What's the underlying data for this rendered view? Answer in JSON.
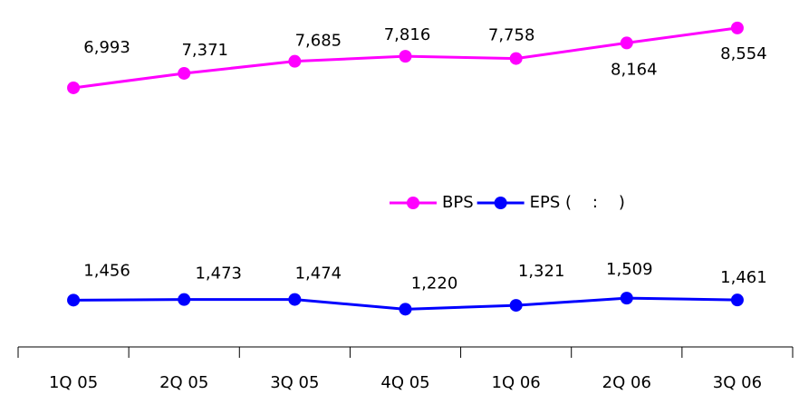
{
  "chart_data": {
    "type": "line",
    "categories": [
      "1Q 05",
      "2Q 05",
      "3Q 05",
      "4Q 05",
      "1Q 06",
      "2Q 06",
      "3Q 06"
    ],
    "series": [
      {
        "name": "BPS",
        "color": "#ff00ff",
        "values": [
          6993,
          7371,
          7685,
          7816,
          7758,
          8164,
          8554
        ],
        "value_labels": [
          "6,993",
          "7,371",
          "7,685",
          "7,816",
          "7,758",
          "8,164",
          "8,554"
        ]
      },
      {
        "name": "EPS (    :    )",
        "color": "#0000ff",
        "values": [
          1456,
          1473,
          1474,
          1220,
          1321,
          1509,
          1461
        ],
        "value_labels": [
          "1,456",
          "1,473",
          "1,474",
          "1,220",
          "1,321",
          "1,509",
          "1,461"
        ]
      }
    ],
    "ylim": [
      0,
      9000
    ]
  }
}
